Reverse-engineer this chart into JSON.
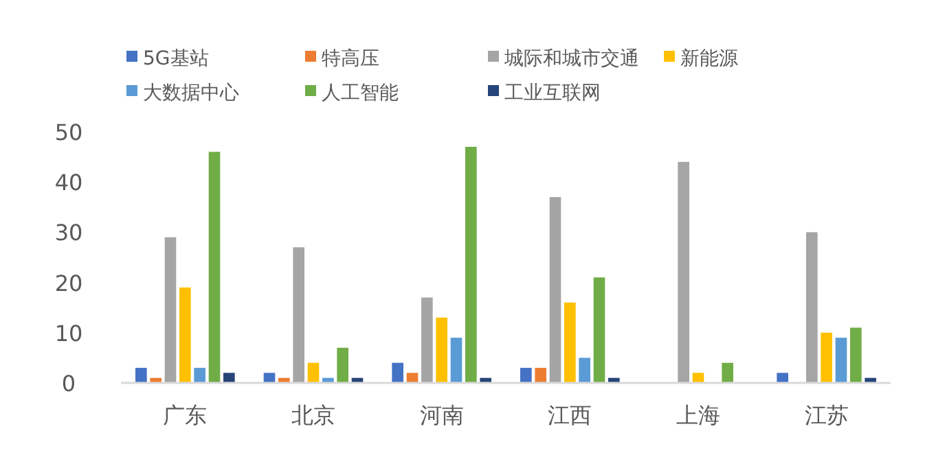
{
  "chart_data": {
    "type": "bar",
    "categories": [
      "广东",
      "北京",
      "河南",
      "江西",
      "上海",
      "江苏"
    ],
    "series": [
      {
        "name": "5G基站",
        "color": "#4472c4",
        "values": [
          3,
          2,
          4,
          3,
          null,
          2
        ]
      },
      {
        "name": "特高压",
        "color": "#ed7d31",
        "values": [
          1,
          1,
          2,
          3,
          null,
          null
        ]
      },
      {
        "name": "城际和城市交通",
        "color": "#a5a5a5",
        "values": [
          29,
          27,
          17,
          37,
          44,
          30
        ]
      },
      {
        "name": "新能源",
        "color": "#ffc000",
        "values": [
          19,
          4,
          13,
          16,
          2,
          10
        ]
      },
      {
        "name": "大数据中心",
        "color": "#5b9bd5",
        "values": [
          3,
          1,
          9,
          5,
          null,
          9
        ]
      },
      {
        "name": "人工智能",
        "color": "#70ad47",
        "values": [
          46,
          7,
          47,
          21,
          4,
          11
        ]
      },
      {
        "name": "工业互联网",
        "color": "#264478",
        "values": [
          2,
          1,
          1,
          1,
          null,
          1
        ]
      }
    ],
    "ylim": [
      0,
      50
    ],
    "yticks": [
      0,
      10,
      20,
      30,
      40,
      50
    ],
    "grid": false,
    "legend": "top"
  }
}
